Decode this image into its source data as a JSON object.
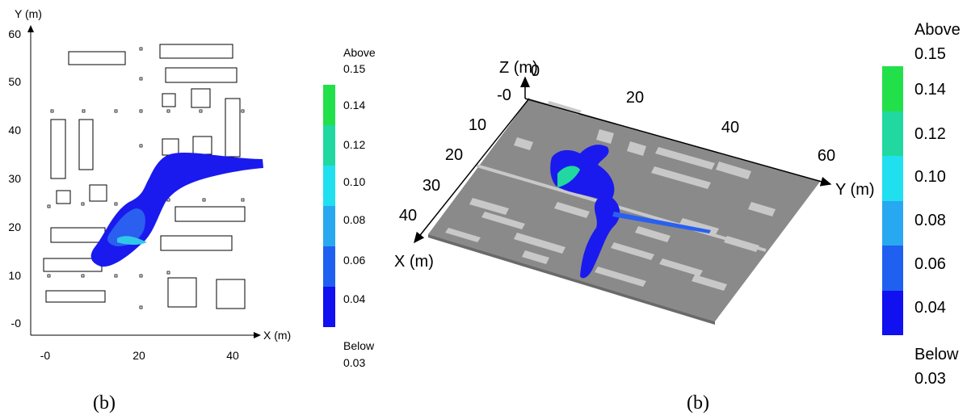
{
  "panels": [
    {
      "y_axis_label": "Y (m)",
      "x_axis_label": "X (m)",
      "y_ticks": [
        "60",
        "50",
        "40",
        "30",
        "20",
        "10",
        "-0"
      ],
      "x_ticks": [
        "-0",
        "20",
        "40"
      ],
      "colorbar": {
        "above": "Above",
        "above_value": "0.15",
        "levels": [
          "0.14",
          "0.12",
          "0.10",
          "0.08",
          "0.06",
          "0.04"
        ],
        "below": "Below",
        "below_value": "0.03"
      },
      "caption": "(b)"
    },
    {
      "z_axis_label": "Z (m)",
      "z_tick": "0",
      "x_axis_label": "X (m)",
      "y_axis_label": "Y (m)",
      "x_ticks": [
        "-0",
        "10",
        "20",
        "30",
        "40"
      ],
      "y_ticks": [
        "20",
        "40",
        "60"
      ],
      "colorbar": {
        "above": "Above",
        "above_value": "0.15",
        "levels": [
          "0.14",
          "0.12",
          "0.10",
          "0.08",
          "0.06",
          "0.04"
        ],
        "below": "Below",
        "below_value": "0.03"
      },
      "caption": "(b)"
    }
  ]
}
